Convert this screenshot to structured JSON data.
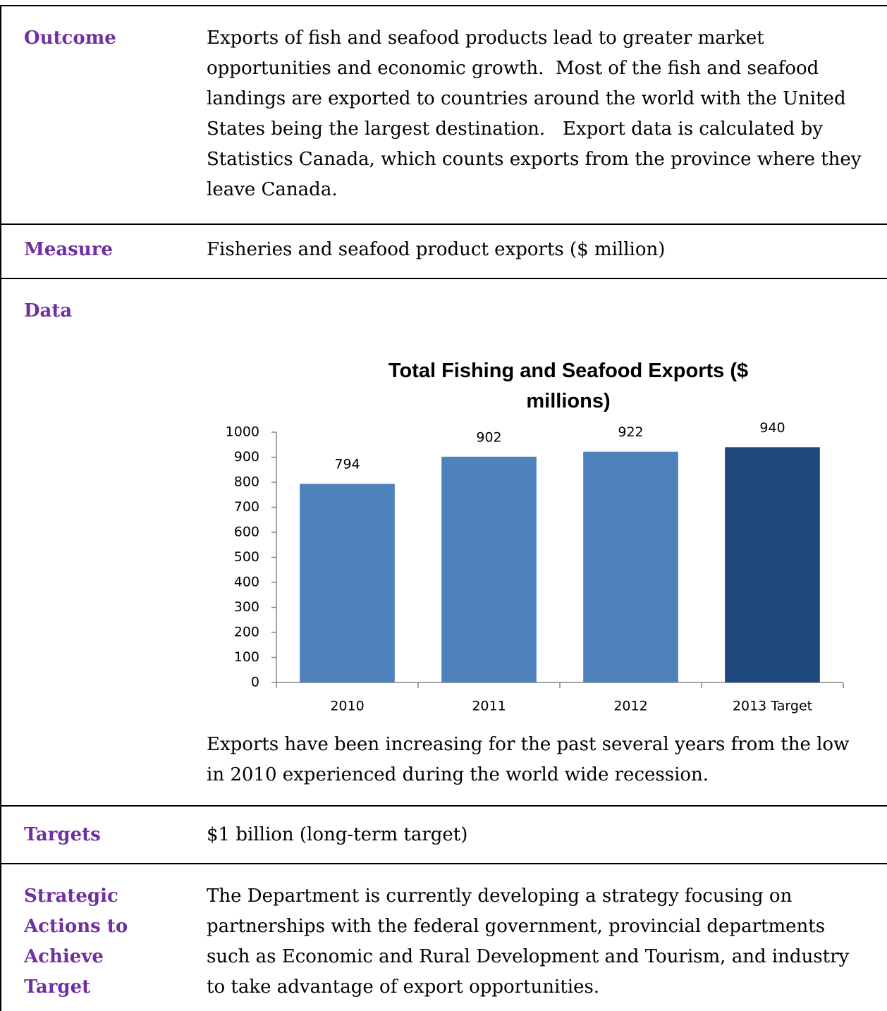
{
  "rows": [
    {
      "label": "Outcome",
      "text": "Exports of fish and seafood products lead to greater market opportunities and economic growth.  Most of the fish and seafood landings are exported to countries around the world with the United States being the largest destination.   Export data is calculated by Statistics Canada, which counts exports from the province where they leave Canada."
    },
    {
      "label": "Measure",
      "text": "Fisheries and seafood product exports ($ million)"
    },
    {
      "label": "Data",
      "text": "Exports have been increasing for the past several years from the low in 2010 experienced during the world wide recession."
    },
    {
      "label": "Targets",
      "text": "$1 billion (long-term target)"
    },
    {
      "label": "Strategic Actions to Achieve Target",
      "text": "The Department is currently developing a strategy focusing on partnerships with the federal government, provincial departments such as Economic and Rural Development and Tourism, and industry to take advantage of export opportunities."
    }
  ],
  "chart_data": {
    "type": "bar",
    "title": "Total Fishing and Seafood Exports ($ millions)",
    "categories": [
      "2010",
      "2011",
      "2012",
      "2013 Target"
    ],
    "values": [
      794,
      902,
      922,
      940
    ],
    "colors": [
      "#4f81bd",
      "#4f81bd",
      "#4f81bd",
      "#1f497d"
    ],
    "ylim": [
      0,
      1000
    ],
    "yticks": [
      0,
      100,
      200,
      300,
      400,
      500,
      600,
      700,
      800,
      900,
      1000
    ],
    "grid": false
  }
}
